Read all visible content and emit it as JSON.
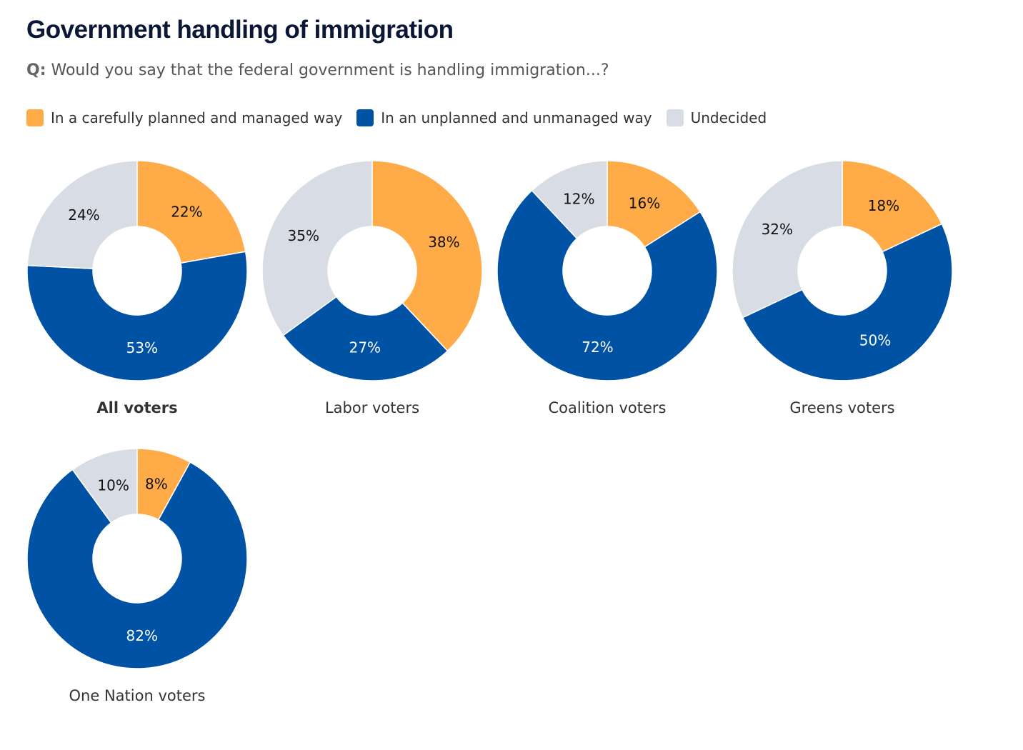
{
  "header": {
    "title": "Government handling of immigration",
    "question_prefix": "Q:",
    "question": "Would you say that the federal government is handling immigration...?"
  },
  "colors": {
    "planned": "#FFAB47",
    "unplanned": "#0052A5",
    "undecided": "#D8DCE4",
    "label_dark": "#111111",
    "label_light": "#ffffff"
  },
  "chart_data": {
    "type": "pie",
    "subtype": "donut",
    "title": "Government handling of immigration",
    "subtitle": "Q: Would you say that the federal government is handling immigration...?",
    "legend": [
      {
        "key": "planned",
        "label": "In a carefully planned and managed way"
      },
      {
        "key": "unplanned",
        "label": "In an unplanned and unmanaged way"
      },
      {
        "key": "undecided",
        "label": "Undecided"
      }
    ],
    "legend_position": "top-left",
    "series_order": [
      "planned",
      "unplanned",
      "undecided"
    ],
    "groups": [
      {
        "name": "All voters",
        "bold": true,
        "values": {
          "planned": 22,
          "unplanned": 53,
          "undecided": 24
        }
      },
      {
        "name": "Labor voters",
        "bold": false,
        "values": {
          "planned": 38,
          "unplanned": 27,
          "undecided": 35
        }
      },
      {
        "name": "Coalition voters",
        "bold": false,
        "values": {
          "planned": 16,
          "unplanned": 72,
          "undecided": 12
        }
      },
      {
        "name": "Greens voters",
        "bold": false,
        "values": {
          "planned": 18,
          "unplanned": 50,
          "undecided": 32
        }
      },
      {
        "name": "One Nation voters",
        "bold": false,
        "values": {
          "planned": 8,
          "unplanned": 82,
          "undecided": 10
        }
      }
    ],
    "value_suffix": "%"
  }
}
